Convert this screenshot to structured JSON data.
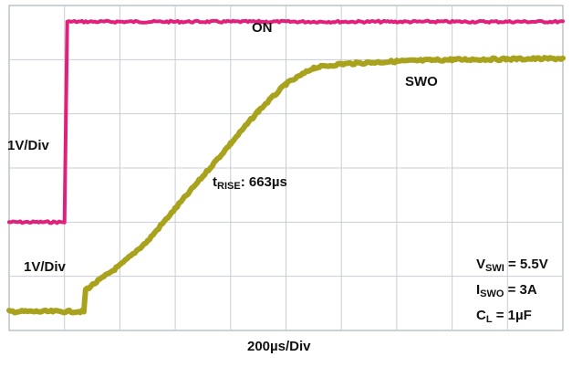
{
  "chart_data": {
    "type": "line",
    "title": "",
    "x_axis": {
      "label": "200µs/Div",
      "divisions": 10,
      "time_per_div_us": 200,
      "range_us": [
        0,
        2000
      ]
    },
    "y_axis": {
      "divisions": 6,
      "grid": true
    },
    "series": [
      {
        "name": "ON",
        "color": "#e0207a",
        "scale_label": "1V/Div",
        "points_div": [
          [
            0,
            2.0
          ],
          [
            1.0,
            2.0
          ],
          [
            1.05,
            5.7
          ],
          [
            10,
            5.7
          ]
        ]
      },
      {
        "name": "SWO",
        "color": "#a9a21c",
        "scale_label": "1V/Div",
        "points_div": [
          [
            0,
            0.35
          ],
          [
            1.35,
            0.35
          ],
          [
            1.38,
            0.75
          ],
          [
            2.0,
            1.2
          ],
          [
            2.5,
            1.65
          ],
          [
            3.0,
            2.25
          ],
          [
            3.5,
            2.85
          ],
          [
            4.0,
            3.45
          ],
          [
            4.5,
            4.05
          ],
          [
            5.0,
            4.55
          ],
          [
            5.5,
            4.85
          ],
          [
            6.0,
            4.92
          ],
          [
            7.0,
            4.97
          ],
          [
            8.0,
            5.0
          ],
          [
            10,
            5.02
          ]
        ]
      }
    ],
    "annotations": {
      "rise_time_prefix": "t",
      "rise_time_sub": "RISE",
      "rise_time_value": ": 663µs",
      "conditions": [
        {
          "symbol": "V",
          "sub": "SWI",
          "value": " = 5.5V"
        },
        {
          "symbol": "I",
          "sub": "SWO",
          "value": " = 3A"
        },
        {
          "symbol": "C",
          "sub": "L",
          "value": " = 1µF"
        }
      ]
    },
    "colors": {
      "background": "#ffffff",
      "grid": "#c8cdd4",
      "frame": "#9aa4ae"
    }
  }
}
